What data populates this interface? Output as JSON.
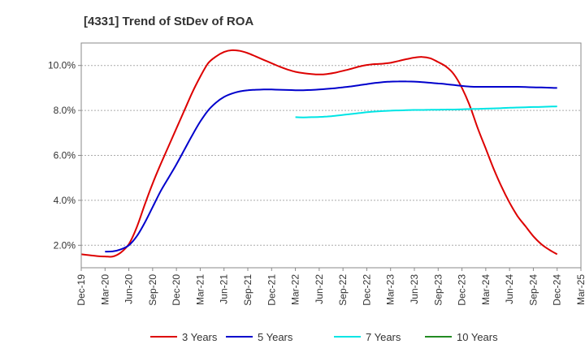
{
  "chart_data": {
    "type": "line",
    "title": "[4331]  Trend of StDev of ROA",
    "xlabel": "",
    "ylabel": "",
    "ylim": [
      1.0,
      11.0
    ],
    "y_ticks": [
      "2.0%",
      "4.0%",
      "6.0%",
      "8.0%",
      "10.0%"
    ],
    "y_tick_values": [
      2,
      4,
      6,
      8,
      10
    ],
    "x_ticks": [
      "Dec-19",
      "Mar-20",
      "Jun-20",
      "Sep-20",
      "Dec-20",
      "Mar-21",
      "Jun-21",
      "Sep-21",
      "Dec-21",
      "Mar-22",
      "Jun-22",
      "Sep-22",
      "Dec-22",
      "Mar-23",
      "Jun-23",
      "Sep-23",
      "Dec-23",
      "Mar-24",
      "Jun-24",
      "Sep-24",
      "Dec-24",
      "Mar-25"
    ],
    "grid": true,
    "legend_position": "bottom",
    "series": [
      {
        "name": "3 Years",
        "color": "#dd0000",
        "x": [
          "Dec-19",
          "Jan-20",
          "Feb-20",
          "Mar-20",
          "Apr-20",
          "May-20",
          "Jun-20",
          "Jul-20",
          "Aug-20",
          "Sep-20",
          "Oct-20",
          "Nov-20",
          "Dec-20",
          "Jan-21",
          "Feb-21",
          "Mar-21",
          "Apr-21",
          "May-21",
          "Jun-21",
          "Jul-21",
          "Aug-21",
          "Sep-21",
          "Oct-21",
          "Nov-21",
          "Dec-21",
          "Jan-22",
          "Feb-22",
          "Mar-22",
          "Apr-22",
          "May-22",
          "Jun-22",
          "Jul-22",
          "Aug-22",
          "Sep-22",
          "Oct-22",
          "Nov-22",
          "Dec-22",
          "Jan-23",
          "Feb-23",
          "Mar-23",
          "Apr-23",
          "May-23",
          "Jun-23",
          "Jul-23",
          "Aug-23",
          "Sep-23",
          "Oct-23",
          "Nov-23",
          "Dec-23",
          "Jan-24",
          "Feb-24",
          "Mar-24",
          "Apr-24",
          "May-24",
          "Jun-24",
          "Jul-24",
          "Aug-24",
          "Sep-24",
          "Oct-24",
          "Nov-24",
          "Dec-24"
        ],
        "values": [
          1.6,
          1.56,
          1.52,
          1.5,
          1.5,
          1.68,
          2.05,
          2.8,
          3.8,
          4.75,
          5.6,
          6.4,
          7.2,
          8.0,
          8.8,
          9.5,
          10.1,
          10.4,
          10.6,
          10.68,
          10.65,
          10.55,
          10.4,
          10.25,
          10.1,
          9.95,
          9.82,
          9.72,
          9.66,
          9.62,
          9.6,
          9.62,
          9.68,
          9.76,
          9.85,
          9.95,
          10.02,
          10.06,
          10.08,
          10.12,
          10.2,
          10.28,
          10.35,
          10.38,
          10.32,
          10.15,
          9.95,
          9.6,
          9.0,
          8.2,
          7.2,
          6.3,
          5.4,
          4.6,
          3.9,
          3.3,
          2.85,
          2.4,
          2.05,
          1.8,
          1.6
        ]
      },
      {
        "name": "5 Years",
        "color": "#0000cc",
        "x": [
          "Mar-20",
          "Apr-20",
          "May-20",
          "Jun-20",
          "Jul-20",
          "Aug-20",
          "Sep-20",
          "Oct-20",
          "Nov-20",
          "Dec-20",
          "Jan-21",
          "Feb-21",
          "Mar-21",
          "Apr-21",
          "May-21",
          "Jun-21",
          "Jul-21",
          "Aug-21",
          "Sep-21",
          "Oct-21",
          "Nov-21",
          "Dec-21",
          "Jan-22",
          "Feb-22",
          "Mar-22",
          "Apr-22",
          "May-22",
          "Jun-22",
          "Jul-22",
          "Aug-22",
          "Sep-22",
          "Oct-22",
          "Nov-22",
          "Dec-22",
          "Jan-23",
          "Feb-23",
          "Mar-23",
          "Apr-23",
          "May-23",
          "Jun-23",
          "Jul-23",
          "Aug-23",
          "Sep-23",
          "Oct-23",
          "Nov-23",
          "Dec-23",
          "Jan-24",
          "Feb-24",
          "Mar-24",
          "Apr-24",
          "May-24",
          "Jun-24",
          "Jul-24",
          "Aug-24",
          "Sep-24",
          "Oct-24",
          "Nov-24",
          "Dec-24"
        ],
        "values": [
          1.72,
          1.73,
          1.82,
          2.0,
          2.4,
          3.0,
          3.7,
          4.4,
          5.0,
          5.6,
          6.25,
          6.9,
          7.5,
          8.0,
          8.35,
          8.6,
          8.75,
          8.85,
          8.9,
          8.92,
          8.93,
          8.93,
          8.92,
          8.91,
          8.9,
          8.9,
          8.91,
          8.93,
          8.96,
          8.99,
          9.03,
          9.07,
          9.12,
          9.17,
          9.22,
          9.26,
          9.28,
          9.29,
          9.29,
          9.28,
          9.26,
          9.23,
          9.2,
          9.17,
          9.13,
          9.09,
          9.06,
          9.05,
          9.05,
          9.05,
          9.05,
          9.05,
          9.05,
          9.04,
          9.03,
          9.02,
          9.01,
          9.0
        ]
      },
      {
        "name": "7 Years",
        "color": "#00e5e5",
        "x": [
          "Mar-22",
          "Apr-22",
          "May-22",
          "Jun-22",
          "Jul-22",
          "Aug-22",
          "Sep-22",
          "Oct-22",
          "Nov-22",
          "Dec-22",
          "Jan-23",
          "Feb-23",
          "Mar-23",
          "Apr-23",
          "May-23",
          "Jun-23",
          "Jul-23",
          "Aug-23",
          "Sep-23",
          "Oct-23",
          "Nov-23",
          "Dec-23",
          "Jan-24",
          "Feb-24",
          "Mar-24",
          "Apr-24",
          "May-24",
          "Jun-24",
          "Jul-24",
          "Aug-24",
          "Sep-24",
          "Oct-24",
          "Nov-24",
          "Dec-24"
        ],
        "values": [
          7.7,
          7.69,
          7.7,
          7.71,
          7.73,
          7.76,
          7.8,
          7.84,
          7.88,
          7.92,
          7.95,
          7.97,
          7.99,
          8.0,
          8.01,
          8.02,
          8.02,
          8.03,
          8.03,
          8.04,
          8.04,
          8.05,
          8.06,
          8.07,
          8.08,
          8.09,
          8.1,
          8.12,
          8.13,
          8.14,
          8.15,
          8.16,
          8.17,
          8.18
        ]
      },
      {
        "name": "10 Years",
        "color": "#228b22",
        "x": [],
        "values": []
      }
    ]
  }
}
